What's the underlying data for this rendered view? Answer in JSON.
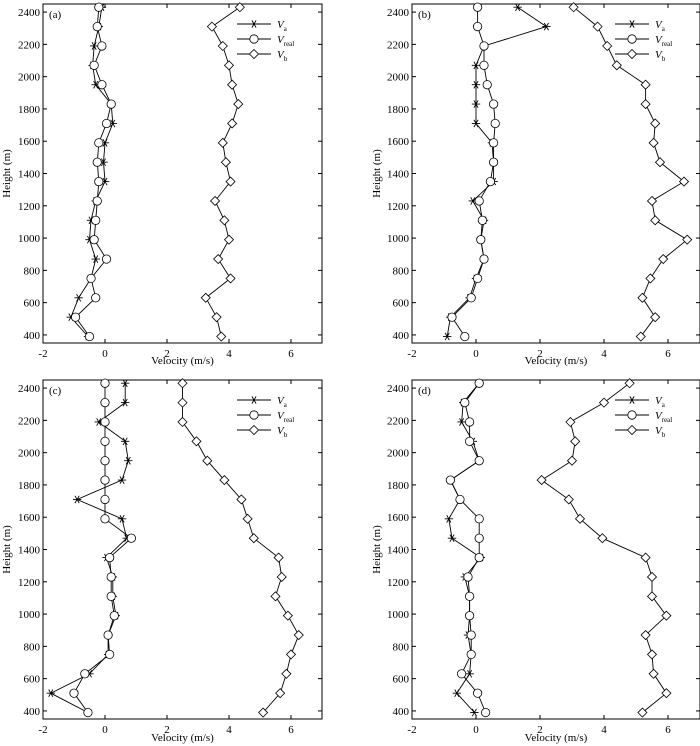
{
  "axis_labels": {
    "x": "Velocity (m/s)",
    "y": "Height (m)"
  },
  "legend": [
    {
      "key": "Va",
      "base": "V",
      "sub": "a",
      "marker": "star"
    },
    {
      "key": "Vreal",
      "base": "V",
      "sub": "real",
      "marker": "circle"
    },
    {
      "key": "Vb",
      "base": "V",
      "sub": "b",
      "marker": "diamond"
    }
  ],
  "chart_data": [
    {
      "type": "line",
      "panel": "(a)",
      "xlim": [
        -2,
        7
      ],
      "ylim": [
        350,
        2450
      ],
      "xticks": [
        -2,
        0,
        2,
        4,
        6
      ],
      "yticks": [
        400,
        600,
        800,
        1000,
        1200,
        1400,
        1600,
        1800,
        2000,
        2200,
        2400
      ],
      "xlabel": "Velocity (m/s)",
      "ylabel": "Height (m)",
      "series": [
        {
          "name": "Va",
          "marker": "star",
          "points": [
            [
              -0.55,
              390
            ],
            [
              -1.1,
              510
            ],
            [
              -0.85,
              630
            ],
            [
              -0.45,
              750
            ],
            [
              -0.3,
              870
            ],
            [
              -0.5,
              990
            ],
            [
              -0.45,
              1110
            ],
            [
              -0.3,
              1230
            ],
            [
              0.0,
              1350
            ],
            [
              -0.05,
              1470
            ],
            [
              0.0,
              1590
            ],
            [
              0.25,
              1710
            ],
            [
              0.2,
              1830
            ],
            [
              -0.3,
              1950
            ],
            [
              -0.4,
              2070
            ],
            [
              -0.35,
              2190
            ],
            [
              -0.2,
              2310
            ],
            [
              -0.1,
              2430
            ]
          ]
        },
        {
          "name": "Vreal",
          "marker": "circle",
          "points": [
            [
              -0.5,
              390
            ],
            [
              -0.95,
              510
            ],
            [
              -0.3,
              630
            ],
            [
              -0.45,
              750
            ],
            [
              0.05,
              870
            ],
            [
              -0.35,
              990
            ],
            [
              -0.3,
              1110
            ],
            [
              -0.25,
              1230
            ],
            [
              -0.2,
              1350
            ],
            [
              -0.25,
              1470
            ],
            [
              -0.2,
              1590
            ],
            [
              0.05,
              1710
            ],
            [
              0.2,
              1830
            ],
            [
              -0.1,
              1950
            ],
            [
              -0.35,
              2070
            ],
            [
              -0.1,
              2190
            ],
            [
              -0.25,
              2310
            ],
            [
              -0.2,
              2430
            ]
          ]
        },
        {
          "name": "Vb",
          "marker": "diamond",
          "points": [
            [
              3.75,
              390
            ],
            [
              3.6,
              510
            ],
            [
              3.25,
              630
            ],
            [
              4.05,
              750
            ],
            [
              3.65,
              870
            ],
            [
              4.0,
              990
            ],
            [
              3.85,
              1110
            ],
            [
              3.55,
              1230
            ],
            [
              4.05,
              1350
            ],
            [
              3.9,
              1470
            ],
            [
              3.8,
              1590
            ],
            [
              4.1,
              1710
            ],
            [
              4.3,
              1830
            ],
            [
              4.1,
              1950
            ],
            [
              4.0,
              2070
            ],
            [
              3.8,
              2190
            ],
            [
              3.45,
              2310
            ],
            [
              4.35,
              2430
            ]
          ]
        }
      ]
    },
    {
      "type": "line",
      "panel": "(b)",
      "xlim": [
        -2,
        7
      ],
      "ylim": [
        350,
        2450
      ],
      "xticks": [
        -2,
        0,
        2,
        4,
        6
      ],
      "yticks": [
        400,
        600,
        800,
        1000,
        1200,
        1400,
        1600,
        1800,
        2000,
        2200,
        2400
      ],
      "xlabel": "Velocity (m/s)",
      "ylabel": "Height (m)",
      "series": [
        {
          "name": "Va",
          "marker": "star",
          "points": [
            [
              -0.9,
              390
            ],
            [
              -0.8,
              510
            ],
            [
              -0.2,
              630
            ],
            [
              0.0,
              750
            ],
            [
              0.25,
              870
            ],
            [
              0.15,
              990
            ],
            [
              0.25,
              1110
            ],
            [
              -0.1,
              1230
            ],
            [
              0.55,
              1350
            ],
            [
              0.55,
              1470
            ],
            [
              0.5,
              1590
            ],
            [
              0.0,
              1710
            ],
            [
              0.0,
              1830
            ],
            [
              0.0,
              1950
            ],
            [
              0.0,
              2070
            ],
            [
              0.25,
              2190
            ],
            [
              2.2,
              2310
            ],
            [
              1.3,
              2430
            ]
          ]
        },
        {
          "name": "Vreal",
          "marker": "circle",
          "points": [
            [
              -0.35,
              390
            ],
            [
              -0.75,
              510
            ],
            [
              -0.15,
              630
            ],
            [
              0.05,
              750
            ],
            [
              0.25,
              870
            ],
            [
              0.15,
              990
            ],
            [
              0.2,
              1110
            ],
            [
              0.1,
              1230
            ],
            [
              0.45,
              1350
            ],
            [
              0.55,
              1470
            ],
            [
              0.55,
              1590
            ],
            [
              0.6,
              1710
            ],
            [
              0.55,
              1830
            ],
            [
              0.35,
              1950
            ],
            [
              0.25,
              2070
            ],
            [
              0.25,
              2190
            ],
            [
              0.05,
              2310
            ],
            [
              0.05,
              2430
            ]
          ]
        },
        {
          "name": "Vb",
          "marker": "diamond",
          "points": [
            [
              5.15,
              390
            ],
            [
              5.6,
              510
            ],
            [
              5.2,
              630
            ],
            [
              5.45,
              750
            ],
            [
              5.85,
              870
            ],
            [
              6.6,
              990
            ],
            [
              5.6,
              1110
            ],
            [
              5.5,
              1230
            ],
            [
              6.5,
              1350
            ],
            [
              5.75,
              1470
            ],
            [
              5.55,
              1590
            ],
            [
              5.6,
              1710
            ],
            [
              5.3,
              1830
            ],
            [
              5.3,
              1950
            ],
            [
              4.4,
              2070
            ],
            [
              4.1,
              2190
            ],
            [
              3.8,
              2310
            ],
            [
              3.05,
              2430
            ]
          ]
        }
      ]
    },
    {
      "type": "line",
      "panel": "(c)",
      "xlim": [
        -2,
        7
      ],
      "ylim": [
        350,
        2450
      ],
      "xticks": [
        -2,
        0,
        2,
        4,
        6
      ],
      "yticks": [
        400,
        600,
        800,
        1000,
        1200,
        1400,
        1600,
        1800,
        2000,
        2200,
        2400
      ],
      "xlabel": "Velocity (m/s)",
      "ylabel": "Height (m)",
      "series": [
        {
          "name": "Va",
          "marker": "star",
          "points": [
            [
              -0.55,
              390
            ],
            [
              -1.75,
              510
            ],
            [
              -0.5,
              630
            ],
            [
              0.1,
              750
            ],
            [
              0.1,
              870
            ],
            [
              0.35,
              990
            ],
            [
              0.25,
              1110
            ],
            [
              0.25,
              1230
            ],
            [
              0.05,
              1350
            ],
            [
              0.7,
              1470
            ],
            [
              0.55,
              1590
            ],
            [
              -0.9,
              1710
            ],
            [
              0.55,
              1830
            ],
            [
              0.75,
              1950
            ],
            [
              0.65,
              2070
            ],
            [
              -0.2,
              2190
            ],
            [
              0.65,
              2310
            ],
            [
              0.65,
              2430
            ]
          ]
        },
        {
          "name": "Vreal",
          "marker": "circle",
          "points": [
            [
              -0.55,
              390
            ],
            [
              -1.0,
              510
            ],
            [
              -0.65,
              630
            ],
            [
              0.15,
              750
            ],
            [
              0.1,
              870
            ],
            [
              0.3,
              990
            ],
            [
              0.2,
              1110
            ],
            [
              0.2,
              1230
            ],
            [
              0.15,
              1350
            ],
            [
              0.85,
              1470
            ],
            [
              0.0,
              1590
            ],
            [
              0.0,
              1710
            ],
            [
              0.0,
              1830
            ],
            [
              0.0,
              1950
            ],
            [
              0.0,
              2070
            ],
            [
              0.0,
              2190
            ],
            [
              0.0,
              2310
            ],
            [
              0.0,
              2430
            ]
          ]
        },
        {
          "name": "Vb",
          "marker": "diamond",
          "points": [
            [
              5.1,
              390
            ],
            [
              5.65,
              510
            ],
            [
              5.85,
              630
            ],
            [
              6.0,
              750
            ],
            [
              6.25,
              870
            ],
            [
              5.9,
              990
            ],
            [
              5.5,
              1110
            ],
            [
              5.7,
              1230
            ],
            [
              5.6,
              1350
            ],
            [
              4.8,
              1470
            ],
            [
              4.6,
              1590
            ],
            [
              4.4,
              1710
            ],
            [
              3.85,
              1830
            ],
            [
              3.3,
              1950
            ],
            [
              2.95,
              2070
            ],
            [
              2.5,
              2190
            ],
            [
              2.5,
              2310
            ],
            [
              2.5,
              2430
            ]
          ]
        }
      ]
    },
    {
      "type": "line",
      "panel": "(d)",
      "xlim": [
        -2,
        7
      ],
      "ylim": [
        350,
        2450
      ],
      "xticks": [
        -2,
        0,
        2,
        4,
        6
      ],
      "yticks": [
        400,
        600,
        800,
        1000,
        1200,
        1400,
        1600,
        1800,
        2000,
        2200,
        2400
      ],
      "xlabel": "Velocity (m/s)",
      "ylabel": "Height (m)",
      "series": [
        {
          "name": "Va",
          "marker": "star",
          "points": [
            [
              -0.05,
              390
            ],
            [
              -0.6,
              510
            ],
            [
              -0.2,
              630
            ],
            [
              -0.15,
              750
            ],
            [
              -0.25,
              870
            ],
            [
              -0.2,
              990
            ],
            [
              -0.2,
              1110
            ],
            [
              -0.35,
              1230
            ],
            [
              0.15,
              1350
            ],
            [
              -0.75,
              1470
            ],
            [
              -0.85,
              1590
            ],
            [
              -0.5,
              1710
            ],
            [
              -0.8,
              1830
            ],
            [
              0.1,
              1950
            ],
            [
              -0.1,
              2070
            ],
            [
              -0.45,
              2190
            ],
            [
              -0.4,
              2310
            ],
            [
              0.1,
              2430
            ]
          ]
        },
        {
          "name": "Vreal",
          "marker": "circle",
          "points": [
            [
              0.3,
              390
            ],
            [
              0.05,
              510
            ],
            [
              -0.45,
              630
            ],
            [
              -0.15,
              750
            ],
            [
              -0.15,
              870
            ],
            [
              -0.2,
              990
            ],
            [
              -0.2,
              1110
            ],
            [
              -0.25,
              1230
            ],
            [
              0.1,
              1350
            ],
            [
              0.1,
              1470
            ],
            [
              0.1,
              1590
            ],
            [
              -0.5,
              1710
            ],
            [
              -0.8,
              1830
            ],
            [
              0.1,
              1950
            ],
            [
              -0.2,
              2070
            ],
            [
              -0.2,
              2190
            ],
            [
              -0.35,
              2310
            ],
            [
              0.1,
              2430
            ]
          ]
        },
        {
          "name": "Vb",
          "marker": "diamond",
          "points": [
            [
              5.2,
              390
            ],
            [
              5.95,
              510
            ],
            [
              5.55,
              630
            ],
            [
              5.5,
              750
            ],
            [
              5.3,
              870
            ],
            [
              5.95,
              990
            ],
            [
              5.5,
              1110
            ],
            [
              5.5,
              1230
            ],
            [
              5.3,
              1350
            ],
            [
              3.95,
              1470
            ],
            [
              3.25,
              1590
            ],
            [
              2.9,
              1710
            ],
            [
              2.05,
              1830
            ],
            [
              3.0,
              1950
            ],
            [
              3.1,
              2070
            ],
            [
              2.95,
              2190
            ],
            [
              4.0,
              2310
            ],
            [
              4.8,
              2430
            ]
          ]
        }
      ]
    }
  ]
}
